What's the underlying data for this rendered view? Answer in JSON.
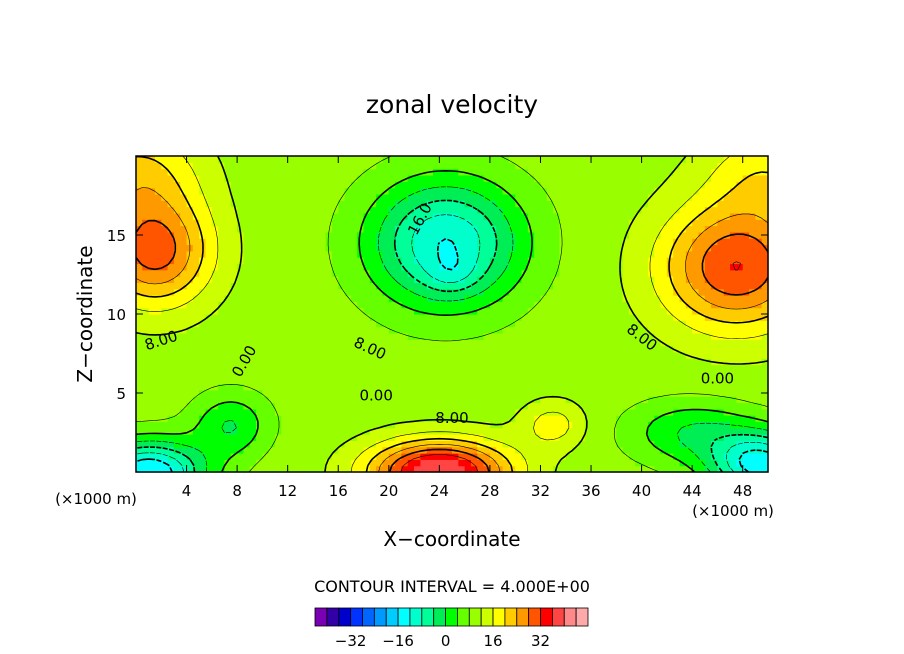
{
  "chart_data": {
    "type": "heatmap",
    "title": "zonal velocity",
    "xlabel": "X−coordinate",
    "ylabel": "Z−coordinate",
    "x_unit_left": "(×1000 m)",
    "x_unit_right": "(×1000 m)",
    "xlim": [
      0,
      50
    ],
    "ylim": [
      0,
      20
    ],
    "x_ticks": [
      4,
      8,
      12,
      16,
      20,
      24,
      28,
      32,
      36,
      40,
      44,
      48
    ],
    "y_ticks": [
      5,
      10,
      15
    ],
    "contour_interval_text": "CONTOUR INTERVAL = 4.000E+00",
    "contour_labels": [
      {
        "text": "16.0",
        "x": 22.5,
        "z": 16.0,
        "angle": -62
      },
      {
        "text": "8.00",
        "x": 2.0,
        "z": 8.3,
        "angle": -18
      },
      {
        "text": "0.00",
        "x": 8.6,
        "z": 7.0,
        "angle": -60
      },
      {
        "text": "8.00",
        "x": 18.5,
        "z": 7.8,
        "angle": 25
      },
      {
        "text": "0.00",
        "x": 19.0,
        "z": 4.8,
        "angle": 0
      },
      {
        "text": "8.00",
        "x": 25.0,
        "z": 3.4,
        "angle": 0
      },
      {
        "text": "8.00",
        "x": 40.0,
        "z": 8.5,
        "angle": 38
      },
      {
        "text": "0.00",
        "x": 46.0,
        "z": 5.9,
        "angle": 0
      }
    ],
    "colorbar": {
      "levels": [
        -36,
        -32,
        -28,
        -24,
        -20,
        -16,
        -12,
        -8,
        -4,
        0,
        4,
        8,
        12,
        16,
        20,
        24,
        28,
        32,
        36
      ],
      "colors": [
        "#7a00b3",
        "#3300a8",
        "#0000cc",
        "#0033ff",
        "#0066ff",
        "#0099ff",
        "#00ccff",
        "#00ffff",
        "#00ffcc",
        "#00ff99",
        "#00ee55",
        "#00ff00",
        "#66ff00",
        "#99ff00",
        "#ccff00",
        "#ffff00",
        "#ffcc00",
        "#ff9900",
        "#ff5500",
        "#ff0000",
        "#ff4444",
        "#ff8888",
        "#ffaaaa"
      ],
      "tick_values": [
        -32,
        -16,
        0,
        16,
        32
      ],
      "tick_labels": [
        "−32",
        "−16",
        "0",
        "16",
        "32"
      ]
    },
    "field_centers": [
      {
        "x": 24.5,
        "z": 14.5,
        "amp": -22,
        "sx": 6.0,
        "sz": 4.0
      },
      {
        "x": 25.0,
        "z": 12.5,
        "amp": -4,
        "sx": 2.0,
        "sz": 1.2
      },
      {
        "x": 24.0,
        "z": 0.0,
        "amp": 30,
        "sx": 5.5,
        "sz": 2.0
      },
      {
        "x": 1.5,
        "z": 14.0,
        "amp": 20,
        "sx": 4.5,
        "sz": 3.5
      },
      {
        "x": 47.5,
        "z": 13.0,
        "amp": 22,
        "sx": 6.0,
        "sz": 4.0
      },
      {
        "x": 1.0,
        "z": 0.0,
        "amp": -26,
        "sx": 4.5,
        "sz": 2.0
      },
      {
        "x": 49.5,
        "z": 0.5,
        "amp": -24,
        "sx": 4.0,
        "sz": 2.0
      },
      {
        "x": 44.0,
        "z": 2.5,
        "amp": -10,
        "sx": 5.0,
        "sz": 2.0
      },
      {
        "x": 7.5,
        "z": 3.0,
        "amp": -10,
        "sx": 3.0,
        "sz": 2.0
      },
      {
        "x": 33.0,
        "z": 3.0,
        "amp": 8,
        "sx": 2.5,
        "sz": 1.5
      },
      {
        "x": 0.0,
        "z": 19.0,
        "amp": 10,
        "sx": 5.0,
        "sz": 3.0
      },
      {
        "x": 50.0,
        "z": 19.0,
        "amp": 8,
        "sx": 5.0,
        "sz": 3.0
      }
    ],
    "field_base": 6
  }
}
